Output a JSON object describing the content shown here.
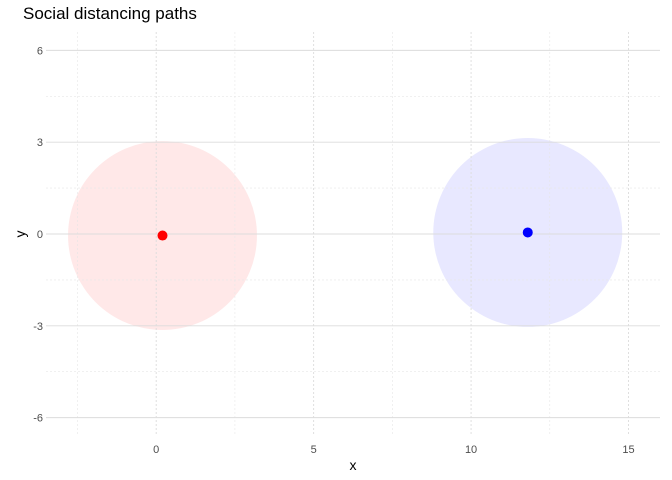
{
  "chart_data": {
    "type": "scatter",
    "title": "Social distancing paths",
    "xlabel": "x",
    "ylabel": "y",
    "xlim": [
      -3.5,
      16
    ],
    "ylim": [
      -6.6,
      6.6
    ],
    "x_ticks": [
      0,
      5,
      10,
      15
    ],
    "y_ticks": [
      -6,
      -3,
      0,
      3,
      6
    ],
    "x_minor": [
      -2.5,
      2.5,
      7.5,
      12.5
    ],
    "y_minor": [
      -4.5,
      -1.5,
      1.5,
      4.5
    ],
    "grid": true,
    "legend": "none",
    "series": [
      {
        "x": 0.2,
        "y": -0.05,
        "radius": 3,
        "color": "#ff0000",
        "halo_color": "#ffe4e4"
      },
      {
        "x": 11.8,
        "y": 0.05,
        "radius": 3,
        "color": "#0000ff",
        "halo_color": "#e4e4ff"
      }
    ]
  }
}
